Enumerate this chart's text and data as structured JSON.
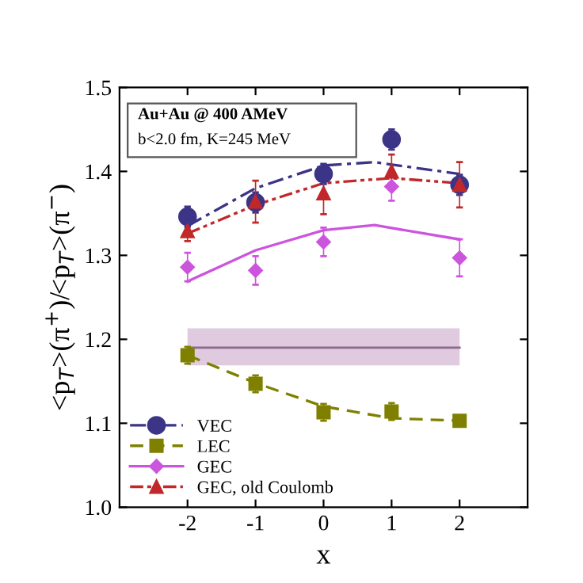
{
  "chart_data": {
    "type": "scatter",
    "xlabel": "x",
    "ylabel": "<p$_{T}$>(π$^{+}$)/<p$_{T}$>(π$^{−}$)",
    "xlim": [
      -3,
      3
    ],
    "xticks": [
      -2,
      -1,
      0,
      1,
      2
    ],
    "ylim": [
      1.0,
      1.5
    ],
    "yticks": [
      {
        "value": 1.0,
        "label": "1.0"
      },
      1.1,
      1.2,
      1.3,
      1.4,
      1.5
    ],
    "x": [
      -2,
      -1,
      0,
      1,
      2
    ],
    "legend": "bottom left",
    "grid": false,
    "annotations": [
      "Au+Au @ 400 AMeV",
      "b<2.0 fm, K=245 MeV"
    ],
    "ref_lines": [
      {
        "axis": "y",
        "value": 1.19,
        "color": "#8a6a8a",
        "line_style": "solid"
      }
    ],
    "bands": [
      {
        "axis": "y",
        "from": 1.169,
        "to": 1.213,
        "color": "#c9a6c9"
      }
    ],
    "series": [
      {
        "type": "line",
        "color": "#3b3487",
        "line_style": "dashdot",
        "x": [
          -2,
          -1,
          0,
          0.75,
          2
        ],
        "values": [
          1.335,
          1.38,
          1.407,
          1.411,
          1.397
        ]
      },
      {
        "type": "line",
        "color": "#808000",
        "line_style": "dashed",
        "x": [
          -2,
          -1,
          0,
          1,
          2
        ],
        "values": [
          1.181,
          1.148,
          1.12,
          1.106,
          1.103
        ]
      },
      {
        "type": "line",
        "color": "#cc55dd",
        "line_style": "solid",
        "x": [
          -2,
          -1,
          0,
          0.75,
          2
        ],
        "values": [
          1.269,
          1.306,
          1.33,
          1.336,
          1.319
        ]
      },
      {
        "type": "line",
        "color": "#c0282a",
        "line_style": "dashdotdot",
        "x": [
          -2,
          -1,
          0,
          1,
          2
        ],
        "values": [
          1.326,
          1.36,
          1.386,
          1.392,
          1.386
        ]
      },
      {
        "name": "VEC",
        "color": "#3b3487",
        "marker": "circle",
        "line_style": "dashdot",
        "values": [
          1.346,
          1.363,
          1.397,
          1.438,
          1.384
        ],
        "errors": [
          0.012,
          0.012,
          0.012,
          0.012,
          0.012
        ]
      },
      {
        "name": "LEC",
        "color": "#808000",
        "marker": "square",
        "line_style": "dashed",
        "values": [
          1.181,
          1.147,
          1.113,
          1.114,
          1.103
        ],
        "errors": [
          0.01,
          0.01,
          0.01,
          0.01,
          0.005
        ]
      },
      {
        "name": "GEC",
        "color": "#cc55dd",
        "marker": "diamond",
        "line_style": "solid",
        "values": [
          1.286,
          1.282,
          1.316,
          1.382,
          1.297
        ],
        "errors": [
          0.017,
          0.017,
          0.017,
          0.017,
          0.022
        ]
      },
      {
        "name": "GEC, old Coulomb",
        "color": "#c0282a",
        "marker": "triangle",
        "line_style": "dashdotdot",
        "values": [
          1.329,
          1.364,
          1.374,
          1.4,
          1.384
        ],
        "errors": [
          0.012,
          0.025,
          0.025,
          0.02,
          0.027
        ]
      }
    ]
  }
}
